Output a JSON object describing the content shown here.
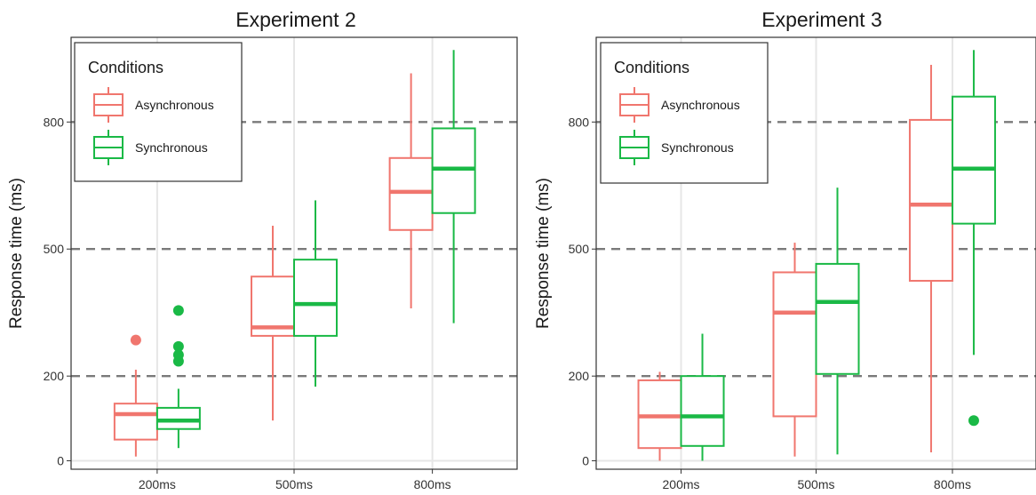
{
  "chart_data": [
    {
      "type": "boxplot",
      "title": "Experiment 2",
      "ylabel": "Response time (ms)",
      "xlabel": "",
      "ylim": [
        -20,
        1000
      ],
      "yticks": [
        0,
        200,
        500,
        800
      ],
      "reference_lines": [
        200,
        500,
        800
      ],
      "categories": [
        "200ms",
        "500ms",
        "800ms"
      ],
      "legend": {
        "title": "Conditions",
        "position": "top-left"
      },
      "series": [
        {
          "name": "Asynchronous",
          "color": "#f0766e",
          "boxes": [
            {
              "category": "200ms",
              "whisker_low": 10,
              "q1": 50,
              "median": 110,
              "q3": 135,
              "whisker_high": 215,
              "outliers": [
                285
              ]
            },
            {
              "category": "500ms",
              "whisker_low": 95,
              "q1": 295,
              "median": 315,
              "q3": 435,
              "whisker_high": 555,
              "outliers": []
            },
            {
              "category": "800ms",
              "whisker_low": 360,
              "q1": 545,
              "median": 635,
              "q3": 715,
              "whisker_high": 915,
              "outliers": []
            }
          ]
        },
        {
          "name": "Synchronous",
          "color": "#1ab946",
          "boxes": [
            {
              "category": "200ms",
              "whisker_low": 30,
              "q1": 75,
              "median": 95,
              "q3": 125,
              "whisker_high": 170,
              "outliers": [
                235,
                250,
                270,
                355
              ]
            },
            {
              "category": "500ms",
              "whisker_low": 175,
              "q1": 295,
              "median": 370,
              "q3": 475,
              "whisker_high": 615,
              "outliers": []
            },
            {
              "category": "800ms",
              "whisker_low": 325,
              "q1": 585,
              "median": 690,
              "q3": 785,
              "whisker_high": 970,
              "outliers": []
            }
          ]
        }
      ]
    },
    {
      "type": "boxplot",
      "title": "Experiment 3",
      "ylabel": "Response time (ms)",
      "xlabel": "",
      "ylim": [
        -20,
        1000
      ],
      "yticks": [
        0,
        200,
        500,
        800
      ],
      "reference_lines": [
        200,
        500,
        800
      ],
      "categories": [
        "200ms",
        "500ms",
        "800ms"
      ],
      "legend": {
        "title": "Conditions",
        "position": "top-left"
      },
      "series": [
        {
          "name": "Asynchronous",
          "color": "#f0766e",
          "boxes": [
            {
              "category": "200ms",
              "whisker_low": 0,
              "q1": 30,
              "median": 105,
              "q3": 190,
              "whisker_high": 210,
              "outliers": []
            },
            {
              "category": "500ms",
              "whisker_low": 10,
              "q1": 105,
              "median": 350,
              "q3": 445,
              "whisker_high": 515,
              "outliers": []
            },
            {
              "category": "800ms",
              "whisker_low": 20,
              "q1": 425,
              "median": 605,
              "q3": 805,
              "whisker_high": 935,
              "outliers": []
            }
          ]
        },
        {
          "name": "Synchronous",
          "color": "#1ab946",
          "boxes": [
            {
              "category": "200ms",
              "whisker_low": 0,
              "q1": 35,
              "median": 105,
              "q3": 200,
              "whisker_high": 300,
              "outliers": []
            },
            {
              "category": "500ms",
              "whisker_low": 15,
              "q1": 205,
              "median": 375,
              "q3": 465,
              "whisker_high": 645,
              "outliers": []
            },
            {
              "category": "800ms",
              "whisker_low": 250,
              "q1": 560,
              "median": 690,
              "q3": 860,
              "whisker_high": 970,
              "outliers": [
                95
              ]
            }
          ]
        }
      ]
    }
  ]
}
